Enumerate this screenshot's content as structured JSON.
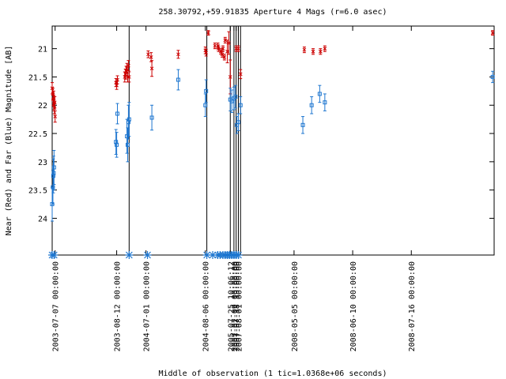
{
  "chart_data": {
    "type": "scatter",
    "title": "258.30792,+59.91835   Aperture 4 Mags (r=6.0 asec)",
    "xlabel": "Middle of observation (1 tic=1.0368e+06 seconds)",
    "ylabel": "Near (Red) and Far (Blue) Magnitude [AB]",
    "ylim": [
      24.65,
      20.6
    ],
    "xlim": [
      0.0,
      60.3
    ],
    "y_ticks": [
      21,
      21.5,
      22,
      22.5,
      23,
      23.5,
      24
    ],
    "y_tick_labels": [
      "21",
      "21.5",
      "22",
      "22.5",
      "23",
      "23.5",
      "24"
    ],
    "x_ticks": [
      {
        "x": 0.4,
        "label": "2003-07-07 00:00:00"
      },
      {
        "x": 8.8,
        "label": "2003-08-12 00:00:00"
      },
      {
        "x": 12.8,
        "label": "2004-07-01 00:00:00"
      },
      {
        "x": 20.9,
        "label": "2004-08-06 00:00:00"
      },
      {
        "x": 24.3,
        "label": "2005-07-25 10:06:12"
      },
      {
        "x": 24.8,
        "label": "2007-07-09 00:00:00"
      },
      {
        "x": 25.1,
        "label": "2007-07-18 19:00:00"
      },
      {
        "x": 25.4,
        "label": "2007-08-01 00:00:00"
      },
      {
        "x": 33.0,
        "label": "2008-05-05 00:00:00"
      },
      {
        "x": 41.0,
        "label": "2008-06-10 00:00:00"
      },
      {
        "x": 49.0,
        "label": "2008-07-16 00:00:00"
      }
    ],
    "vertical_lines_x": [
      10.5,
      21.1,
      24.3,
      24.8,
      25.1,
      25.4,
      25.7
    ],
    "observation_markers_x": [
      0.0,
      0.25,
      10.5,
      13.0,
      21.1,
      21.9,
      22.6,
      22.9,
      23.3,
      23.6,
      23.9,
      24.2,
      24.5,
      24.8,
      25.1,
      25.4
    ],
    "series": [
      {
        "name": "Near (Red)",
        "color": "#cc0000",
        "marker": "x",
        "points": [
          {
            "x": 0.0,
            "y": 21.7,
            "err": 0.1
          },
          {
            "x": 0.1,
            "y": 21.8,
            "err": 0.1
          },
          {
            "x": 0.15,
            "y": 21.9,
            "err": 0.1
          },
          {
            "x": 0.2,
            "y": 21.85,
            "err": 0.1
          },
          {
            "x": 0.25,
            "y": 22.0,
            "err": 0.1
          },
          {
            "x": 0.3,
            "y": 22.05,
            "err": 0.1
          },
          {
            "x": 0.35,
            "y": 21.95,
            "err": 0.1
          },
          {
            "x": 0.4,
            "y": 22.2,
            "err": 0.1
          },
          {
            "x": 8.7,
            "y": 21.6,
            "err": 0.07
          },
          {
            "x": 8.8,
            "y": 21.65,
            "err": 0.07
          },
          {
            "x": 8.9,
            "y": 21.55,
            "err": 0.07
          },
          {
            "x": 9.9,
            "y": 21.5,
            "err": 0.09
          },
          {
            "x": 10.0,
            "y": 21.45,
            "err": 0.09
          },
          {
            "x": 10.1,
            "y": 21.4,
            "err": 0.09
          },
          {
            "x": 10.2,
            "y": 21.35,
            "err": 0.09
          },
          {
            "x": 10.3,
            "y": 21.5,
            "err": 0.09
          },
          {
            "x": 10.4,
            "y": 21.3,
            "err": 0.09
          },
          {
            "x": 10.5,
            "y": 21.5,
            "err": 0.09
          },
          {
            "x": 13.1,
            "y": 21.1,
            "err": 0.06
          },
          {
            "x": 13.5,
            "y": 21.15,
            "err": 0.08
          },
          {
            "x": 13.6,
            "y": 21.35,
            "err": 0.14
          },
          {
            "x": 17.2,
            "y": 21.1,
            "err": 0.07
          },
          {
            "x": 20.9,
            "y": 21.03,
            "err": 0.06
          },
          {
            "x": 21.0,
            "y": 21.07,
            "err": 0.06
          },
          {
            "x": 21.3,
            "y": 20.72,
            "err": 0.04
          },
          {
            "x": 22.2,
            "y": 20.95,
            "err": 0.05
          },
          {
            "x": 22.6,
            "y": 20.95,
            "err": 0.05
          },
          {
            "x": 22.7,
            "y": 21.0,
            "err": 0.05
          },
          {
            "x": 23.0,
            "y": 21.05,
            "err": 0.05
          },
          {
            "x": 23.2,
            "y": 21.1,
            "err": 0.05
          },
          {
            "x": 23.3,
            "y": 21.0,
            "err": 0.05
          },
          {
            "x": 23.5,
            "y": 21.15,
            "err": 0.05
          },
          {
            "x": 23.6,
            "y": 20.85,
            "err": 0.05
          },
          {
            "x": 23.9,
            "y": 21.05,
            "err": 0.2
          },
          {
            "x": 24.1,
            "y": 20.9,
            "err": 0.2
          },
          {
            "x": 24.3,
            "y": 21.5,
            "err": 0.3
          },
          {
            "x": 25.1,
            "y": 21.0,
            "err": 0.05
          },
          {
            "x": 25.4,
            "y": 21.0,
            "err": 0.05
          },
          {
            "x": 25.7,
            "y": 21.45,
            "err": 0.08
          },
          {
            "x": 34.4,
            "y": 21.02,
            "err": 0.05
          },
          {
            "x": 35.6,
            "y": 21.05,
            "err": 0.05
          },
          {
            "x": 36.6,
            "y": 21.05,
            "err": 0.05
          },
          {
            "x": 37.2,
            "y": 21.0,
            "err": 0.05
          },
          {
            "x": 60.1,
            "y": 20.72,
            "err": 0.04
          }
        ]
      },
      {
        "name": "Far (Blue)",
        "color": "#1f77d0",
        "marker": "square",
        "points": [
          {
            "x": 0.0,
            "y": 23.75,
            "err": 0.3
          },
          {
            "x": 0.1,
            "y": 23.45,
            "err": 0.3
          },
          {
            "x": 0.15,
            "y": 23.25,
            "err": 0.3
          },
          {
            "x": 0.2,
            "y": 23.2,
            "err": 0.3
          },
          {
            "x": 0.25,
            "y": 23.1,
            "err": 0.3
          },
          {
            "x": 8.9,
            "y": 22.15,
            "err": 0.18
          },
          {
            "x": 8.7,
            "y": 22.65,
            "err": 0.22
          },
          {
            "x": 8.8,
            "y": 22.7,
            "err": 0.22
          },
          {
            "x": 10.2,
            "y": 22.55,
            "err": 0.3
          },
          {
            "x": 10.3,
            "y": 22.7,
            "err": 0.3
          },
          {
            "x": 10.4,
            "y": 22.3,
            "err": 0.3
          },
          {
            "x": 10.5,
            "y": 22.25,
            "err": 0.3
          },
          {
            "x": 13.6,
            "y": 22.22,
            "err": 0.22
          },
          {
            "x": 17.2,
            "y": 21.55,
            "err": 0.18
          },
          {
            "x": 20.9,
            "y": 22.0,
            "err": 0.2
          },
          {
            "x": 21.0,
            "y": 21.75,
            "err": 0.2
          },
          {
            "x": 24.3,
            "y": 21.9,
            "err": 0.2
          },
          {
            "x": 24.5,
            "y": 21.93,
            "err": 0.2
          },
          {
            "x": 24.8,
            "y": 21.88,
            "err": 0.2
          },
          {
            "x": 25.0,
            "y": 21.85,
            "err": 0.2
          },
          {
            "x": 25.2,
            "y": 22.35,
            "err": 0.15
          },
          {
            "x": 25.4,
            "y": 22.3,
            "err": 0.15
          },
          {
            "x": 25.7,
            "y": 22.0,
            "err": 0.15
          },
          {
            "x": 34.2,
            "y": 22.35,
            "err": 0.15
          },
          {
            "x": 35.4,
            "y": 22.0,
            "err": 0.15
          },
          {
            "x": 36.5,
            "y": 21.8,
            "err": 0.15
          },
          {
            "x": 37.2,
            "y": 21.95,
            "err": 0.15
          },
          {
            "x": 60.1,
            "y": 21.5,
            "err": 0.1
          }
        ]
      }
    ]
  }
}
